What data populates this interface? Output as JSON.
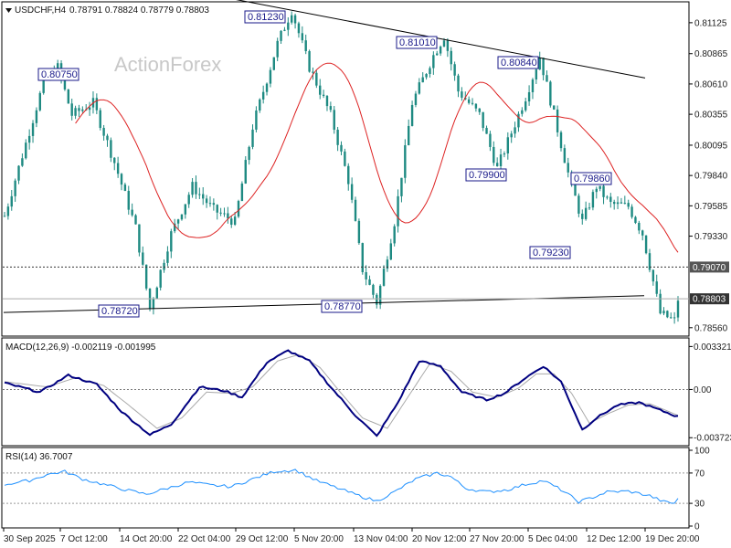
{
  "header": {
    "symbol": "USDCHF,H4",
    "ohlc": "0.78791 0.78824 0.78779 0.78803",
    "macd": "MACD(12,26,9) -0.002119 -0.001995",
    "rsi": "RSI(14) 36.7007"
  },
  "watermark": "ActionForex",
  "colors": {
    "candles": "#1e8a82",
    "ma": "#dd2222",
    "trendlines": "#000000",
    "macd_line": "#000080",
    "signal_line": "#aaaaaa",
    "rsi_line": "#1e90ff",
    "label_text": "#1a1a8a",
    "label_border": "#1a1a8a"
  },
  "chart_data": [
    {
      "type": "candlestick",
      "panel": "price",
      "ylim": [
        0.7852,
        0.8127
      ],
      "y_ticks": [
        "0.81125",
        "0.80865",
        "0.80610",
        "0.80355",
        "0.80095",
        "0.79840",
        "0.79585",
        "0.79330",
        "0.79070",
        "0.78803",
        "0.78560"
      ],
      "x_ticks": [
        "30 Sep 2025",
        "7 Oct 12:00",
        "14 Oct 20:00",
        "22 Oct 04:00",
        "29 Oct 12:00",
        "5 Nov 20:00",
        "13 Nov 04:00",
        "20 Nov 12:00",
        "27 Nov 20:00",
        "5 Dec 04:00",
        "12 Dec 12:00",
        "19 Dec 20:00"
      ],
      "current_price": "0.78803",
      "level_line": "0.79070",
      "annotations": [
        {
          "text": "0.80750",
          "value": 0.8075
        },
        {
          "text": "0.78720",
          "value": 0.7872
        },
        {
          "text": "0.81230",
          "value": 0.8123
        },
        {
          "text": "0.78770",
          "value": 0.7877
        },
        {
          "text": "0.81010",
          "value": 0.8101
        },
        {
          "text": "0.79900",
          "value": 0.799
        },
        {
          "text": "0.80840",
          "value": 0.8084
        },
        {
          "text": "0.79860",
          "value": 0.7986
        },
        {
          "text": "0.79230",
          "value": 0.7923
        }
      ],
      "swing_path": [
        [
          0,
          0.795
        ],
        [
          11,
          0.8062
        ],
        [
          15,
          0.8075
        ],
        [
          19,
          0.8035
        ],
        [
          25,
          0.8045
        ],
        [
          31,
          0.7995
        ],
        [
          37,
          0.794
        ],
        [
          41,
          0.7872
        ],
        [
          47,
          0.7935
        ],
        [
          53,
          0.7975
        ],
        [
          59,
          0.7955
        ],
        [
          65,
          0.7945
        ],
        [
          70,
          0.8025
        ],
        [
          77,
          0.8095
        ],
        [
          81,
          0.8123
        ],
        [
          86,
          0.8075
        ],
        [
          92,
          0.8035
        ],
        [
          97,
          0.798
        ],
        [
          101,
          0.7905
        ],
        [
          105,
          0.7877
        ],
        [
          110,
          0.7945
        ],
        [
          115,
          0.8045
        ],
        [
          121,
          0.8085
        ],
        [
          124,
          0.8101
        ],
        [
          128,
          0.8055
        ],
        [
          134,
          0.8035
        ],
        [
          139,
          0.799
        ],
        [
          143,
          0.802
        ],
        [
          147,
          0.805
        ],
        [
          151,
          0.8084
        ],
        [
          155,
          0.8035
        ],
        [
          159,
          0.7986
        ],
        [
          163,
          0.7945
        ],
        [
          167,
          0.7975
        ],
        [
          171,
          0.796
        ],
        [
          176,
          0.7958
        ],
        [
          180,
          0.7935
        ],
        [
          185,
          0.7868
        ],
        [
          189,
          0.7862
        ],
        [
          190,
          0.788
        ]
      ]
    },
    {
      "type": "line",
      "panel": "macd",
      "name": "MACD(12,26,9)",
      "ylim": [
        -0.0042,
        0.0037
      ],
      "y_ticks": [
        "0.003321",
        "0.00",
        "-0.003723"
      ],
      "macd_path": [
        [
          0,
          0.0005
        ],
        [
          10,
          -0.0002
        ],
        [
          18,
          0.0011
        ],
        [
          26,
          0.0004
        ],
        [
          33,
          -0.0017
        ],
        [
          41,
          -0.0035
        ],
        [
          47,
          -0.0027
        ],
        [
          55,
          0.0002
        ],
        [
          62,
          -0.0001
        ],
        [
          67,
          -0.0006
        ],
        [
          74,
          0.0021
        ],
        [
          80,
          0.003
        ],
        [
          86,
          0.0022
        ],
        [
          92,
          0.0002
        ],
        [
          99,
          -0.002
        ],
        [
          105,
          -0.0036
        ],
        [
          111,
          -0.001
        ],
        [
          117,
          0.0022
        ],
        [
          123,
          0.0018
        ],
        [
          129,
          -0.0002
        ],
        [
          136,
          -0.0008
        ],
        [
          141,
          -0.0003
        ],
        [
          147,
          0.0009
        ],
        [
          152,
          0.0018
        ],
        [
          157,
          0.0006
        ],
        [
          163,
          -0.0031
        ],
        [
          167,
          -0.0022
        ],
        [
          173,
          -0.0012
        ],
        [
          179,
          -0.001
        ],
        [
          184,
          -0.0015
        ],
        [
          190,
          -0.0021
        ]
      ],
      "signal_path": [
        [
          0,
          0.0006
        ],
        [
          12,
          0.0002
        ],
        [
          20,
          0.0009
        ],
        [
          28,
          0.0003
        ],
        [
          35,
          -0.0012
        ],
        [
          43,
          -0.003
        ],
        [
          50,
          -0.0022
        ],
        [
          57,
          -0.0002
        ],
        [
          64,
          -0.0003
        ],
        [
          70,
          0.0002
        ],
        [
          77,
          0.0022
        ],
        [
          83,
          0.0027
        ],
        [
          89,
          0.0017
        ],
        [
          95,
          -0.0003
        ],
        [
          101,
          -0.0022
        ],
        [
          108,
          -0.003
        ],
        [
          114,
          -0.0005
        ],
        [
          120,
          0.002
        ],
        [
          126,
          0.0014
        ],
        [
          132,
          -0.0002
        ],
        [
          139,
          -0.0006
        ],
        [
          145,
          0.0001
        ],
        [
          150,
          0.0012
        ],
        [
          155,
          0.0012
        ],
        [
          160,
          -0.0003
        ],
        [
          165,
          -0.0026
        ],
        [
          170,
          -0.0019
        ],
        [
          176,
          -0.0012
        ],
        [
          182,
          -0.0011
        ],
        [
          190,
          -0.002
        ]
      ]
    },
    {
      "type": "line",
      "panel": "rsi",
      "name": "RSI(14)",
      "ylim": [
        0,
        100
      ],
      "y_ticks": [
        "100",
        "70",
        "30",
        "0"
      ],
      "rsi_path": [
        [
          0,
          55
        ],
        [
          7,
          60
        ],
        [
          12,
          68
        ],
        [
          17,
          72
        ],
        [
          22,
          62
        ],
        [
          28,
          55
        ],
        [
          34,
          48
        ],
        [
          40,
          42
        ],
        [
          46,
          50
        ],
        [
          52,
          58
        ],
        [
          58,
          54
        ],
        [
          64,
          52
        ],
        [
          70,
          62
        ],
        [
          76,
          72
        ],
        [
          82,
          74
        ],
        [
          88,
          60
        ],
        [
          94,
          50
        ],
        [
          100,
          40
        ],
        [
          105,
          33
        ],
        [
          110,
          45
        ],
        [
          116,
          62
        ],
        [
          122,
          70
        ],
        [
          126,
          65
        ],
        [
          130,
          50
        ],
        [
          136,
          45
        ],
        [
          142,
          48
        ],
        [
          147,
          55
        ],
        [
          152,
          60
        ],
        [
          157,
          48
        ],
        [
          162,
          32
        ],
        [
          166,
          38
        ],
        [
          170,
          45
        ],
        [
          176,
          46
        ],
        [
          182,
          40
        ],
        [
          186,
          32
        ],
        [
          189,
          30
        ],
        [
          190,
          37
        ]
      ]
    }
  ]
}
